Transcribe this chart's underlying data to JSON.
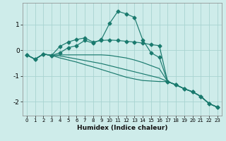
{
  "xlabel": "Humidex (Indice chaleur)",
  "background_color": "#ceecea",
  "grid_color": "#a8d4d0",
  "line_color": "#1a7a6e",
  "x": [
    0,
    1,
    2,
    3,
    4,
    5,
    6,
    7,
    8,
    9,
    10,
    11,
    12,
    13,
    14,
    15,
    16,
    17,
    18,
    19,
    20,
    21,
    22,
    23
  ],
  "series_main": [
    -0.18,
    -0.35,
    -0.15,
    -0.2,
    -0.1,
    0.1,
    0.18,
    0.38,
    0.28,
    0.42,
    1.05,
    1.52,
    1.42,
    1.28,
    0.4,
    -0.1,
    -0.28,
    -1.22,
    -1.35,
    -1.5,
    -1.62,
    -1.8,
    -2.08,
    -2.22
  ],
  "series2": [
    -0.18,
    -0.35,
    -0.15,
    -0.2,
    0.15,
    0.32,
    0.42,
    0.48,
    0.32,
    0.38,
    0.4,
    0.38,
    0.35,
    0.32,
    0.28,
    0.22,
    0.18,
    -1.22,
    -1.35,
    -1.5,
    -1.62,
    -1.8,
    -2.08,
    -2.22
  ],
  "series3": [
    -0.18,
    -0.35,
    -0.15,
    -0.2,
    -0.18,
    -0.18,
    -0.18,
    -0.18,
    -0.18,
    -0.18,
    -0.2,
    -0.25,
    -0.3,
    -0.38,
    -0.48,
    -0.6,
    -0.72,
    -1.22,
    -1.35,
    -1.5,
    -1.62,
    -1.8,
    -2.08,
    -2.22
  ],
  "series4": [
    -0.18,
    -0.35,
    -0.15,
    -0.2,
    -0.22,
    -0.28,
    -0.34,
    -0.4,
    -0.46,
    -0.52,
    -0.6,
    -0.68,
    -0.76,
    -0.84,
    -0.92,
    -1.0,
    -1.08,
    -1.22,
    -1.35,
    -1.5,
    -1.62,
    -1.8,
    -2.08,
    -2.22
  ],
  "series5": [
    -0.18,
    -0.35,
    -0.15,
    -0.2,
    -0.3,
    -0.38,
    -0.46,
    -0.56,
    -0.65,
    -0.75,
    -0.85,
    -0.95,
    -1.05,
    -1.12,
    -1.18,
    -1.2,
    -1.22,
    -1.22,
    -1.35,
    -1.5,
    -1.62,
    -1.8,
    -2.08,
    -2.22
  ],
  "ylim": [
    -2.55,
    1.85
  ],
  "xlim": [
    -0.5,
    23.5
  ],
  "yticks": [
    -2,
    -1,
    0,
    1
  ],
  "xticks": [
    0,
    1,
    2,
    3,
    4,
    5,
    6,
    7,
    8,
    9,
    10,
    11,
    12,
    13,
    14,
    15,
    16,
    17,
    18,
    19,
    20,
    21,
    22,
    23
  ]
}
